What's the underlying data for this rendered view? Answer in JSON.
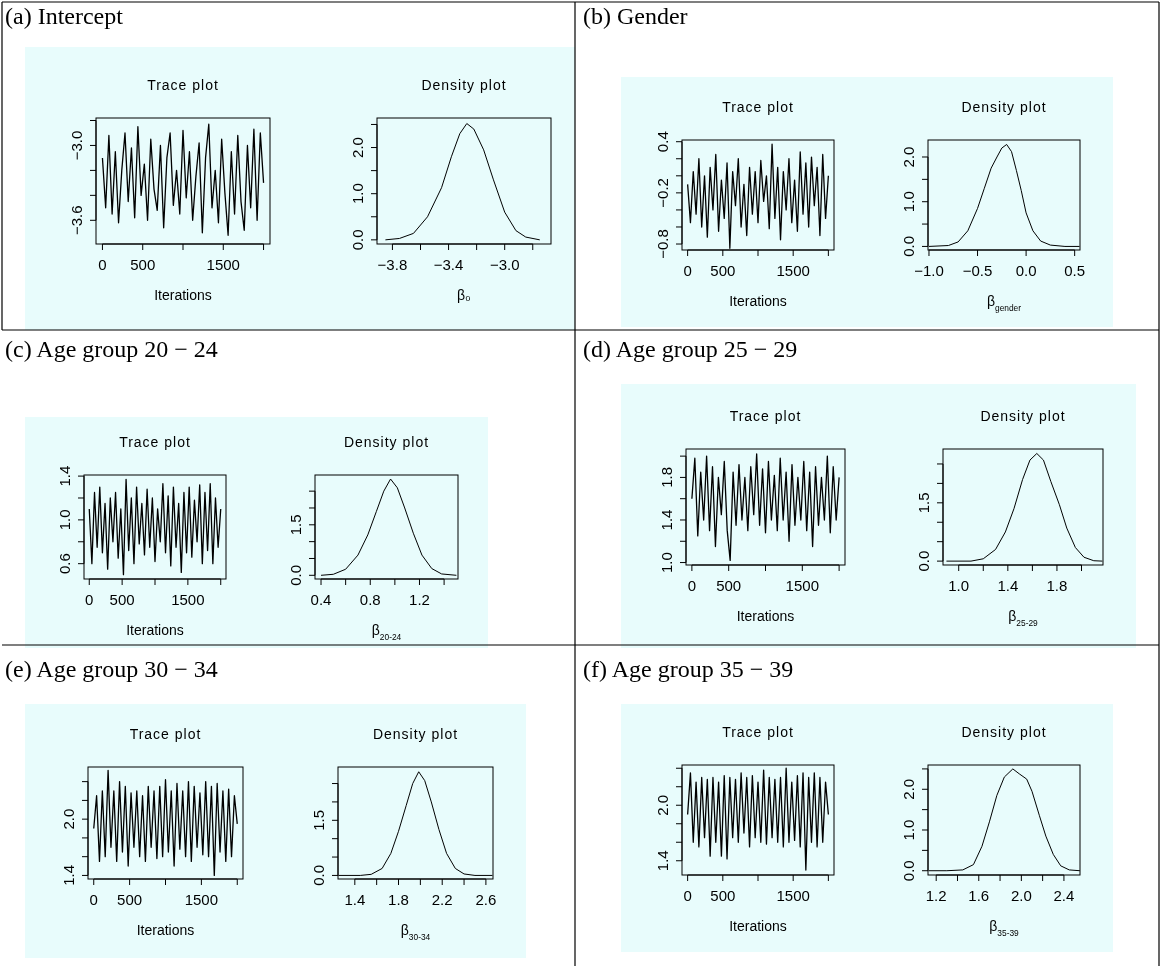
{
  "chart_data": [
    {
      "type": "line",
      "title": "Trace plot",
      "xlabel": "Iterations",
      "annotations": [
        "(a) Intercept"
      ],
      "x": [
        0,
        40,
        80,
        120,
        160,
        200,
        240,
        280,
        320,
        360,
        400,
        440,
        480,
        520,
        560,
        600,
        640,
        680,
        720,
        760,
        800,
        840,
        880,
        920,
        960,
        1000,
        1040,
        1080,
        1120,
        1160,
        1200,
        1240,
        1280,
        1320,
        1360,
        1400,
        1440,
        1480,
        1520,
        1560,
        1600,
        1640,
        1680,
        1720,
        1760,
        1800,
        1840,
        1880,
        1920,
        1960,
        2000
      ],
      "xlim": [
        -80,
        2080
      ],
      "xticks": [
        0,
        500,
        {
          "value": 1000,
          "label": null
        },
        1500,
        {
          "value": 2000,
          "label": null
        }
      ],
      "ylim": [
        -3.79,
        -2.78
      ],
      "yticks": [
        {
          "value": -3.6,
          "label": "−3.6"
        },
        {
          "value": -3.4,
          "label": null
        },
        {
          "value": -3.2,
          "label": null
        },
        {
          "value": -3.0,
          "label": "−3.0"
        },
        {
          "value": -2.8,
          "label": null
        }
      ],
      "series": [
        {
          "color": "#000000",
          "values": [
            -3.1,
            -3.5,
            -2.92,
            -3.55,
            -3.05,
            -3.62,
            -3.2,
            -2.9,
            -3.45,
            -3.02,
            -3.58,
            -2.85,
            -3.4,
            -3.15,
            -3.6,
            -2.95,
            -3.35,
            -3.52,
            -3.0,
            -3.66,
            -3.1,
            -2.9,
            -3.48,
            -3.2,
            -3.55,
            -2.88,
            -3.42,
            -3.05,
            -3.6,
            -3.25,
            -2.98,
            -3.7,
            -3.1,
            -2.83,
            -3.5,
            -3.2,
            -3.62,
            -2.95,
            -3.38,
            -3.72,
            -3.05,
            -3.55,
            -2.92,
            -3.45,
            -3.68,
            -3.0,
            -3.5,
            -2.87,
            -3.6,
            -2.9,
            -3.3
          ]
        }
      ]
    },
    {
      "type": "line",
      "title": "Density plot",
      "xlabel": "β₀",
      "x": [
        -3.85,
        -3.75,
        -3.65,
        -3.55,
        -3.45,
        -3.38,
        -3.32,
        -3.27,
        -3.22,
        -3.15,
        -3.08,
        -3.0,
        -2.92,
        -2.85,
        -2.75
      ],
      "xlim": [
        -3.91,
        -2.67
      ],
      "xticks": [
        {
          "value": -3.8,
          "label": "−3.8"
        },
        {
          "value": -3.6,
          "label": null
        },
        {
          "value": -3.4,
          "label": "−3.4"
        },
        {
          "value": -3.2,
          "label": null
        },
        {
          "value": -3.0,
          "label": "−3.0"
        },
        {
          "value": -2.8,
          "label": null
        }
      ],
      "ylim": [
        -0.09,
        2.64
      ],
      "yticks": [
        {
          "value": 0,
          "label": "0.0"
        },
        {
          "value": 0.5,
          "label": null
        },
        {
          "value": 1,
          "label": "1.0"
        },
        {
          "value": 1.5,
          "label": null
        },
        {
          "value": 2,
          "label": "2.0"
        },
        {
          "value": 2.5,
          "label": null
        }
      ],
      "series": [
        {
          "color": "#000000",
          "values": [
            0.0,
            0.03,
            0.14,
            0.5,
            1.13,
            1.8,
            2.3,
            2.52,
            2.4,
            1.95,
            1.3,
            0.6,
            0.2,
            0.06,
            0.0
          ]
        }
      ]
    },
    {
      "type": "line",
      "title": "Trace plot",
      "xlabel": "Iterations",
      "annotations": [
        "(b) Gender"
      ],
      "x": [
        0,
        40,
        80,
        120,
        160,
        200,
        240,
        280,
        320,
        360,
        400,
        440,
        480,
        520,
        560,
        600,
        640,
        680,
        720,
        760,
        800,
        840,
        880,
        920,
        960,
        1000,
        1040,
        1080,
        1120,
        1160,
        1200,
        1240,
        1280,
        1320,
        1360,
        1400,
        1440,
        1480,
        1520,
        1560,
        1600,
        1640,
        1680,
        1720,
        1760,
        1800,
        1840,
        1880,
        1920,
        1960,
        2000
      ],
      "xlim": [
        -80,
        2080
      ],
      "xticks": [
        0,
        500,
        {
          "value": 1000,
          "label": null
        },
        1500,
        {
          "value": 2000,
          "label": null
        }
      ],
      "ylim": [
        -0.87,
        0.42
      ],
      "yticks": [
        {
          "value": -0.8,
          "label": "−0.8"
        },
        {
          "value": -0.6,
          "label": null
        },
        {
          "value": -0.4,
          "label": null
        },
        {
          "value": -0.2,
          "label": "−0.2"
        },
        {
          "value": 0,
          "label": null
        },
        {
          "value": 0.2,
          "label": null
        },
        {
          "value": 0.4,
          "label": "0.4"
        }
      ],
      "series": [
        {
          "color": "#000000",
          "values": [
            -0.1,
            -0.55,
            0.05,
            -0.45,
            0.2,
            -0.6,
            0.0,
            -0.72,
            0.1,
            -0.4,
            0.25,
            -0.65,
            -0.05,
            -0.5,
            0.15,
            -0.85,
            0.05,
            -0.35,
            0.2,
            -0.6,
            -0.1,
            -0.7,
            0.1,
            -0.45,
            0.05,
            -0.55,
            0.18,
            -0.3,
            0.0,
            -0.62,
            0.37,
            -0.5,
            0.1,
            -0.75,
            0.05,
            -0.4,
            0.2,
            -0.55,
            -0.05,
            -0.65,
            0.28,
            -0.45,
            0.15,
            -0.6,
            0.22,
            -0.35,
            0.1,
            -0.7,
            0.25,
            -0.5,
            0.0
          ]
        }
      ]
    },
    {
      "type": "line",
      "title": "Density plot",
      "xlabel": "β$_{gender}$",
      "x": [
        -1.0,
        -0.8,
        -0.7,
        -0.6,
        -0.5,
        -0.43,
        -0.36,
        -0.3,
        -0.25,
        -0.2,
        -0.15,
        -0.1,
        -0.05,
        0.0,
        0.07,
        0.15,
        0.25,
        0.4,
        0.55
      ],
      "xlim": [
        -1.01,
        0.555
      ],
      "xticks": [
        {
          "value": -1,
          "label": "−1.0"
        },
        {
          "value": -0.5,
          "label": "−0.5"
        },
        {
          "value": 0,
          "label": "0.0"
        },
        {
          "value": 0.5,
          "label": "0.5"
        }
      ],
      "ylim": [
        -0.08,
        2.38
      ],
      "yticks": [
        {
          "value": 0,
          "label": "0.0"
        },
        {
          "value": 0.5,
          "label": null
        },
        {
          "value": 1,
          "label": "1.0"
        },
        {
          "value": 1.5,
          "label": null
        },
        {
          "value": 2,
          "label": "2.0"
        }
      ],
      "series": [
        {
          "color": "#000000",
          "values": [
            0,
            0.02,
            0.1,
            0.35,
            0.85,
            1.3,
            1.75,
            2.0,
            2.2,
            2.28,
            2.12,
            1.7,
            1.25,
            0.75,
            0.35,
            0.12,
            0.03,
            0.0,
            0
          ]
        }
      ]
    },
    {
      "type": "line",
      "title": "Trace plot",
      "xlabel": "Iterations",
      "annotations": [
        "(c) Age group 20 − 24"
      ],
      "x": [
        0,
        40,
        80,
        120,
        160,
        200,
        240,
        280,
        320,
        360,
        400,
        440,
        480,
        520,
        560,
        600,
        640,
        680,
        720,
        760,
        800,
        840,
        880,
        920,
        960,
        1000,
        1040,
        1080,
        1120,
        1160,
        1200,
        1240,
        1280,
        1320,
        1360,
        1400,
        1440,
        1480,
        1520,
        1560,
        1600,
        1640,
        1680,
        1720,
        1760,
        1800,
        1840,
        1880,
        1920,
        1960,
        2000
      ],
      "xlim": [
        -80,
        2080
      ],
      "xticks": [
        0,
        500,
        {
          "value": 1000,
          "label": null
        },
        1500,
        {
          "value": 2000,
          "label": null
        }
      ],
      "ylim": [
        0.46,
        1.41
      ],
      "yticks": [
        {
          "value": 0.6,
          "label": "0.6"
        },
        {
          "value": 0.8,
          "label": null
        },
        {
          "value": 1,
          "label": "1.0"
        },
        {
          "value": 1.2,
          "label": null
        },
        {
          "value": 1.4,
          "label": "1.4"
        }
      ],
      "series": [
        {
          "color": "#000000",
          "values": [
            1.1,
            0.6,
            1.25,
            0.75,
            1.3,
            0.7,
            1.15,
            0.55,
            1.2,
            0.8,
            1.25,
            0.65,
            1.1,
            0.5,
            1.37,
            0.72,
            1.2,
            0.6,
            1.3,
            0.78,
            1.15,
            0.68,
            1.28,
            0.75,
            1.2,
            0.62,
            1.1,
            0.8,
            1.33,
            0.7,
            1.22,
            0.58,
            1.3,
            0.75,
            1.15,
            0.52,
            1.25,
            0.7,
            1.3,
            0.66,
            1.18,
            0.8,
            1.32,
            0.6,
            1.25,
            0.72,
            1.33,
            0.6,
            1.2,
            0.75,
            1.1
          ]
        }
      ]
    },
    {
      "type": "line",
      "title": "Density plot",
      "xlabel": "β$_{20-24}$",
      "x": [
        0.4,
        0.5,
        0.6,
        0.7,
        0.78,
        0.85,
        0.91,
        0.965,
        1.02,
        1.08,
        1.15,
        1.22,
        1.3,
        1.38,
        1.5
      ],
      "xlim": [
        0.351,
        1.513
      ],
      "xticks": [
        {
          "value": 0.4,
          "label": "0.4"
        },
        {
          "value": 0.6,
          "label": null
        },
        {
          "value": 0.8,
          "label": "0.8"
        },
        {
          "value": 1.0,
          "label": null
        },
        {
          "value": 1.2,
          "label": "1.2"
        },
        {
          "value": 1.4,
          "label": null
        }
      ],
      "ylim": [
        -0.11,
        2.98
      ],
      "yticks": [
        {
          "value": 0,
          "label": "0.0"
        },
        {
          "value": 0.5,
          "label": null
        },
        {
          "value": 1,
          "label": null
        },
        {
          "value": 1.5,
          "label": "1.5"
        },
        {
          "value": 2,
          "label": null
        },
        {
          "value": 2.5,
          "label": null
        }
      ],
      "series": [
        {
          "color": "#000000",
          "values": [
            0,
            0.03,
            0.18,
            0.6,
            1.2,
            1.9,
            2.5,
            2.86,
            2.6,
            2.0,
            1.25,
            0.6,
            0.2,
            0.04,
            0
          ]
        }
      ]
    },
    {
      "type": "line",
      "title": "Trace plot",
      "xlabel": "Iterations",
      "annotations": [
        "(d) Age group 25 − 29"
      ],
      "x": [
        0,
        40,
        80,
        120,
        160,
        200,
        240,
        280,
        320,
        360,
        400,
        440,
        480,
        520,
        560,
        600,
        640,
        680,
        720,
        760,
        800,
        840,
        880,
        920,
        960,
        1000,
        1040,
        1080,
        1120,
        1160,
        1200,
        1240,
        1280,
        1320,
        1360,
        1400,
        1440,
        1480,
        1520,
        1560,
        1600,
        1640,
        1680,
        1720,
        1760,
        1800,
        1840,
        1880,
        1920,
        1960,
        2000
      ],
      "xlim": [
        -80,
        2080
      ],
      "xticks": [
        0,
        500,
        {
          "value": 1000,
          "label": null
        },
        1500,
        {
          "value": 2000,
          "label": null
        }
      ],
      "ylim": [
        0.977,
        2.067
      ],
      "yticks": [
        {
          "value": 1,
          "label": "1.0"
        },
        {
          "value": 1.2,
          "label": null
        },
        {
          "value": 1.4,
          "label": "1.4"
        },
        {
          "value": 1.6,
          "label": null
        },
        {
          "value": 1.8,
          "label": "1.8"
        },
        {
          "value": 2,
          "label": null
        }
      ],
      "series": [
        {
          "color": "#000000",
          "values": [
            1.6,
            1.98,
            1.25,
            1.85,
            1.4,
            2.0,
            1.3,
            1.9,
            1.15,
            1.8,
            1.45,
            1.95,
            1.3,
            1.02,
            1.85,
            1.35,
            1.92,
            1.4,
            1.8,
            1.3,
            1.9,
            1.45,
            2.02,
            1.35,
            1.88,
            1.28,
            1.95,
            1.4,
            1.82,
            1.3,
            1.98,
            1.4,
            1.85,
            1.2,
            1.92,
            1.35,
            1.8,
            1.4,
            1.95,
            1.3,
            1.85,
            1.15,
            1.9,
            1.35,
            1.8,
            1.4,
            2.0,
            1.28,
            1.9,
            1.4,
            1.8
          ]
        }
      ]
    },
    {
      "type": "line",
      "title": "Density plot",
      "xlabel": "β$_{25-29}$",
      "x": [
        0.9,
        1.1,
        1.2,
        1.3,
        1.38,
        1.45,
        1.52,
        1.58,
        1.636,
        1.69,
        1.75,
        1.82,
        1.88,
        1.95,
        2.02,
        2.1,
        2.17
      ],
      "xlim": [
        0.872,
        2.175
      ],
      "xticks": [
        {
          "value": 1,
          "label": "1.0"
        },
        {
          "value": 1.2,
          "label": null
        },
        {
          "value": 1.4,
          "label": "1.4"
        },
        {
          "value": 1.6,
          "label": null
        },
        {
          "value": 1.8,
          "label": "1.8"
        },
        {
          "value": 2,
          "label": null
        }
      ],
      "ylim": [
        -0.1,
        2.885
      ],
      "yticks": [
        {
          "value": 0,
          "label": "0.0"
        },
        {
          "value": 0.5,
          "label": null
        },
        {
          "value": 1,
          "label": null
        },
        {
          "value": 1.5,
          "label": "1.5"
        },
        {
          "value": 2,
          "label": null
        },
        {
          "value": 2.5,
          "label": null
        }
      ],
      "series": [
        {
          "color": "#000000",
          "values": [
            0,
            0,
            0.06,
            0.3,
            0.75,
            1.35,
            2.1,
            2.6,
            2.77,
            2.6,
            2.05,
            1.45,
            0.85,
            0.35,
            0.1,
            0.01,
            0
          ]
        }
      ]
    },
    {
      "type": "line",
      "title": "Trace plot",
      "xlabel": "Iterations",
      "annotations": [
        "(e) Age group 30 − 34"
      ],
      "x": [
        0,
        40,
        80,
        120,
        160,
        200,
        240,
        280,
        320,
        360,
        400,
        440,
        480,
        520,
        560,
        600,
        640,
        680,
        720,
        760,
        800,
        840,
        880,
        920,
        960,
        1000,
        1040,
        1080,
        1120,
        1160,
        1200,
        1240,
        1280,
        1320,
        1360,
        1400,
        1440,
        1480,
        1520,
        1560,
        1600,
        1640,
        1680,
        1720,
        1760,
        1800,
        1840,
        1880,
        1920,
        1960,
        2000
      ],
      "xlim": [
        -80,
        2080
      ],
      "xticks": [
        0,
        500,
        {
          "value": 1000,
          "label": null
        },
        1500,
        {
          "value": 2000,
          "label": null
        }
      ],
      "ylim": [
        1.362,
        2.556
      ],
      "yticks": [
        {
          "value": 1.4,
          "label": "1.4"
        },
        {
          "value": 1.6,
          "label": null
        },
        {
          "value": 1.8,
          "label": null
        },
        {
          "value": 2,
          "label": "2.0"
        },
        {
          "value": 2.2,
          "label": null
        },
        {
          "value": 2.4,
          "label": null
        }
      ],
      "series": [
        {
          "color": "#000000",
          "values": [
            1.9,
            2.25,
            1.55,
            2.3,
            1.6,
            2.52,
            1.7,
            2.3,
            1.55,
            2.4,
            1.65,
            2.35,
            1.5,
            2.28,
            1.7,
            2.3,
            1.6,
            2.25,
            1.55,
            2.35,
            1.7,
            2.3,
            1.58,
            2.35,
            1.6,
            2.42,
            1.65,
            2.3,
            1.5,
            2.38,
            1.68,
            2.3,
            1.6,
            2.4,
            1.55,
            2.35,
            1.7,
            2.28,
            1.62,
            2.4,
            1.6,
            2.35,
            1.4,
            2.38,
            1.65,
            2.3,
            1.55,
            2.32,
            1.6,
            2.25,
            1.95
          ]
        }
      ]
    },
    {
      "type": "line",
      "title": "Density plot",
      "xlabel": "β$_{30-34}$",
      "x": [
        1.25,
        1.45,
        1.55,
        1.65,
        1.73,
        1.8,
        1.87,
        1.93,
        1.985,
        2.04,
        2.1,
        2.17,
        2.24,
        2.32,
        2.4,
        2.5,
        2.66
      ],
      "xlim": [
        1.246,
        2.665
      ],
      "xticks": [
        {
          "value": 1.4,
          "label": "1.4"
        },
        {
          "value": 1.6,
          "label": null
        },
        {
          "value": 1.8,
          "label": "1.8"
        },
        {
          "value": 2,
          "label": null
        },
        {
          "value": 2.2,
          "label": "2.2"
        },
        {
          "value": 2.4,
          "label": null
        },
        {
          "value": 2.6,
          "label": "2.6"
        }
      ],
      "ylim": [
        -0.097,
        2.95
      ],
      "yticks": [
        {
          "value": 0,
          "label": "0.0"
        },
        {
          "value": 0.5,
          "label": null
        },
        {
          "value": 1,
          "label": null
        },
        {
          "value": 1.5,
          "label": "1.5"
        },
        {
          "value": 2,
          "label": null
        },
        {
          "value": 2.5,
          "label": null
        }
      ],
      "series": [
        {
          "color": "#000000",
          "values": [
            0,
            0,
            0.03,
            0.19,
            0.6,
            1.2,
            1.9,
            2.5,
            2.82,
            2.58,
            2.0,
            1.25,
            0.6,
            0.19,
            0.04,
            0,
            0
          ]
        }
      ]
    },
    {
      "type": "line",
      "title": "Trace plot",
      "xlabel": "Iterations",
      "annotations": [
        "(f) Age group 35 − 39"
      ],
      "x": [
        0,
        40,
        80,
        120,
        160,
        200,
        240,
        280,
        320,
        360,
        400,
        440,
        480,
        520,
        560,
        600,
        640,
        680,
        720,
        760,
        800,
        840,
        880,
        920,
        960,
        1000,
        1040,
        1080,
        1120,
        1160,
        1200,
        1240,
        1280,
        1320,
        1360,
        1400,
        1440,
        1480,
        1520,
        1560,
        1600,
        1640,
        1680,
        1720,
        1760,
        1800,
        1840,
        1880,
        1920,
        1960,
        2000
      ],
      "xlim": [
        -80,
        2080
      ],
      "xticks": [
        0,
        500,
        {
          "value": 1000,
          "label": null
        },
        1500,
        {
          "value": 2000,
          "label": null
        }
      ],
      "ylim": [
        1.246,
        2.435
      ],
      "yticks": [
        {
          "value": 1.4,
          "label": "1.4"
        },
        {
          "value": 1.6,
          "label": null
        },
        {
          "value": 1.8,
          "label": null
        },
        {
          "value": 2,
          "label": "2.0"
        },
        {
          "value": 2.2,
          "label": null
        },
        {
          "value": 2.4,
          "label": null
        }
      ],
      "series": [
        {
          "color": "#000000",
          "values": [
            1.9,
            2.35,
            1.6,
            2.25,
            1.55,
            2.3,
            1.65,
            2.28,
            1.45,
            2.3,
            1.6,
            2.25,
            1.45,
            2.32,
            1.42,
            2.3,
            1.65,
            2.28,
            1.6,
            2.35,
            1.7,
            2.3,
            1.55,
            2.32,
            1.65,
            2.25,
            1.6,
            2.38,
            1.58,
            2.3,
            1.65,
            2.28,
            1.6,
            2.3,
            1.55,
            2.4,
            1.6,
            2.25,
            1.62,
            2.32,
            1.55,
            2.35,
            1.3,
            2.3,
            1.6,
            2.35,
            1.55,
            2.3,
            1.6,
            2.25,
            1.9
          ]
        }
      ]
    },
    {
      "type": "line",
      "title": "Density plot",
      "xlabel": "β$_{35-39}$",
      "x": [
        1.13,
        1.3,
        1.45,
        1.55,
        1.63,
        1.7,
        1.77,
        1.84,
        1.92,
        1.98,
        2.05,
        2.1,
        2.17,
        2.23,
        2.3,
        2.37,
        2.45,
        2.55
      ],
      "xlim": [
        1.123,
        2.551
      ],
      "xticks": [
        {
          "value": 1.2,
          "label": "1.2"
        },
        {
          "value": 1.4,
          "label": null
        },
        {
          "value": 1.6,
          "label": "1.6"
        },
        {
          "value": 1.8,
          "label": null
        },
        {
          "value": 2,
          "label": "2.0"
        },
        {
          "value": 2.2,
          "label": null
        },
        {
          "value": 2.4,
          "label": "2.4"
        }
      ],
      "ylim": [
        -0.105,
        2.596
      ],
      "yticks": [
        {
          "value": 0,
          "label": "0.0"
        },
        {
          "value": 0.5,
          "label": null
        },
        {
          "value": 1,
          "label": "1.0"
        },
        {
          "value": 1.5,
          "label": null
        },
        {
          "value": 2,
          "label": "2.0"
        },
        {
          "value": 2.5,
          "label": null
        }
      ],
      "series": [
        {
          "color": "#000000",
          "values": [
            0,
            0,
            0.02,
            0.15,
            0.6,
            1.2,
            1.85,
            2.3,
            2.5,
            2.38,
            2.25,
            1.95,
            1.35,
            0.85,
            0.4,
            0.12,
            0.02,
            0
          ]
        }
      ]
    }
  ]
}
